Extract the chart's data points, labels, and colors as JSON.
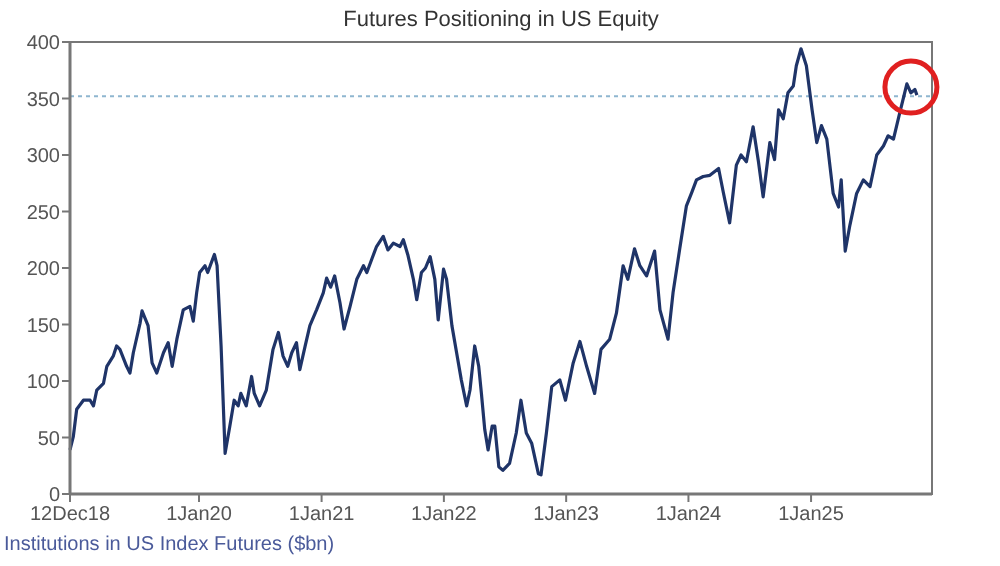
{
  "chart_data": {
    "type": "line",
    "title": "Futures Positioning in US Equity",
    "annotations": [
      "Institutions in US Index Futures ($bn)"
    ],
    "xlim": [
      "2018-12-12",
      "2025-12-28"
    ],
    "xticks": [
      {
        "value": "2018-12-12",
        "label": "12Dec18"
      },
      {
        "value": "2020-01-01",
        "label": "1Jan20"
      },
      {
        "value": "2021-01-01",
        "label": "1Jan21"
      },
      {
        "value": "2022-01-01",
        "label": "1Jan22"
      },
      {
        "value": "2023-01-01",
        "label": "1Jan23"
      },
      {
        "value": "2024-01-01",
        "label": "1Jan24"
      },
      {
        "value": "2025-01-01",
        "label": "1Jan25"
      }
    ],
    "ylim": [
      0,
      400
    ],
    "yticks": [
      0,
      50,
      100,
      150,
      200,
      250,
      300,
      350,
      400
    ],
    "grid": false,
    "line_style": "solid",
    "ref_lines": [
      {
        "axis": "y",
        "value": 352,
        "color": "#8fb6d0",
        "line_style": "dotted"
      }
    ],
    "x": [
      "2018-12-12",
      "2018-12-22",
      "2019-01-01",
      "2019-01-21",
      "2019-02-10",
      "2019-02-20",
      "2019-03-02",
      "2019-03-22",
      "2019-04-01",
      "2019-04-20",
      "2019-04-30",
      "2019-05-10",
      "2019-05-30",
      "2019-06-09",
      "2019-06-19",
      "2019-07-09",
      "2019-07-15",
      "2019-08-02",
      "2019-08-14",
      "2019-08-28",
      "2019-09-17",
      "2019-10-01",
      "2019-10-13",
      "2019-10-27",
      "2019-11-15",
      "2019-12-05",
      "2019-12-15",
      "2019-12-25",
      "2020-01-03",
      "2020-01-19",
      "2020-01-27",
      "2020-02-16",
      "2020-02-24",
      "2020-03-07",
      "2020-03-19",
      "2020-04-02",
      "2020-04-15",
      "2020-04-27",
      "2020-05-05",
      "2020-05-21",
      "2020-06-06",
      "2020-06-14",
      "2020-06-30",
      "2020-07-20",
      "2020-08-09",
      "2020-08-25",
      "2020-09-08",
      "2020-09-22",
      "2020-10-04",
      "2020-10-18",
      "2020-10-28",
      "2020-11-13",
      "2020-11-27",
      "2020-12-17",
      "2021-01-06",
      "2021-01-16",
      "2021-01-28",
      "2021-02-09",
      "2021-02-25",
      "2021-03-09",
      "2021-03-27",
      "2021-04-16",
      "2021-05-06",
      "2021-05-16",
      "2021-05-31",
      "2021-06-14",
      "2021-07-04",
      "2021-07-18",
      "2021-08-03",
      "2021-08-23",
      "2021-09-02",
      "2021-09-16",
      "2021-10-02",
      "2021-10-12",
      "2021-10-26",
      "2021-11-07",
      "2021-11-21",
      "2021-12-05",
      "2021-12-15",
      "2021-12-31",
      "2022-01-09",
      "2022-01-25",
      "2022-02-08",
      "2022-02-22",
      "2022-03-10",
      "2022-03-20",
      "2022-04-03",
      "2022-04-15",
      "2022-04-23",
      "2022-05-03",
      "2022-05-13",
      "2022-05-25",
      "2022-06-02",
      "2022-06-14",
      "2022-06-26",
      "2022-07-16",
      "2022-08-05",
      "2022-08-19",
      "2022-09-04",
      "2022-09-20",
      "2022-10-10",
      "2022-10-18",
      "2022-11-03",
      "2022-11-19",
      "2022-12-13",
      "2022-12-30",
      "2023-01-22",
      "2023-02-11",
      "2023-03-03",
      "2023-03-27",
      "2023-04-15",
      "2023-05-11",
      "2023-05-31",
      "2023-06-20",
      "2023-07-04",
      "2023-07-24",
      "2023-08-09",
      "2023-08-29",
      "2023-09-22",
      "2023-10-08",
      "2023-11-01",
      "2023-11-16",
      "2023-12-06",
      "2023-12-26",
      "2024-01-11",
      "2024-01-25",
      "2024-02-14",
      "2024-03-05",
      "2024-03-31",
      "2024-04-14",
      "2024-05-03",
      "2024-05-23",
      "2024-06-06",
      "2024-06-22",
      "2024-07-12",
      "2024-07-28",
      "2024-08-11",
      "2024-08-31",
      "2024-09-14",
      "2024-09-26",
      "2024-10-10",
      "2024-10-24",
      "2024-11-09",
      "2024-11-18",
      "2024-12-02",
      "2024-12-18",
      "2025-01-04",
      "2025-01-18",
      "2025-02-01",
      "2025-02-17",
      "2025-03-08",
      "2025-03-24",
      "2025-04-01",
      "2025-04-13",
      "2025-04-27",
      "2025-05-17",
      "2025-06-06",
      "2025-06-26",
      "2025-07-16",
      "2025-08-05",
      "2025-08-19",
      "2025-09-04",
      "2025-09-20",
      "2025-10-14",
      "2025-10-26",
      "2025-11-07",
      "2025-11-13"
    ],
    "series": [
      {
        "color": "#1f3468",
        "values": [
          39,
          51,
          75,
          83,
          83,
          78,
          92,
          98,
          113,
          122,
          131,
          128,
          113,
          107,
          125,
          151,
          162,
          149,
          116,
          107,
          125,
          134,
          113,
          137,
          163,
          166,
          153,
          178,
          196,
          202,
          196,
          212,
          202,
          131,
          36,
          60,
          83,
          78,
          89,
          78,
          104,
          89,
          78,
          92,
          128,
          143,
          122,
          113,
          125,
          134,
          110,
          131,
          149,
          163,
          178,
          191,
          183,
          193,
          169,
          146,
          166,
          190,
          202,
          196,
          208,
          219,
          228,
          216,
          222,
          219,
          225,
          211,
          190,
          172,
          196,
          200,
          210,
          190,
          154,
          199,
          190,
          149,
          125,
          101,
          78,
          92,
          131,
          113,
          89,
          57,
          39,
          60,
          60,
          24,
          21,
          27,
          54,
          83,
          54,
          45,
          18,
          17,
          54,
          95,
          101,
          83,
          116,
          135,
          113,
          89,
          128,
          137,
          160,
          202,
          190,
          217,
          202,
          193,
          215,
          163,
          137,
          178,
          217,
          255,
          267,
          278,
          281,
          282,
          288,
          267,
          240,
          291,
          300,
          294,
          325,
          294,
          263,
          311,
          296,
          340,
          332,
          355,
          361,
          379,
          394,
          379,
          340,
          311,
          326,
          314,
          266,
          254,
          278,
          215,
          238,
          266,
          278,
          272,
          300,
          308,
          317,
          314,
          334,
          363,
          355,
          358,
          353
        ]
      }
    ]
  }
}
